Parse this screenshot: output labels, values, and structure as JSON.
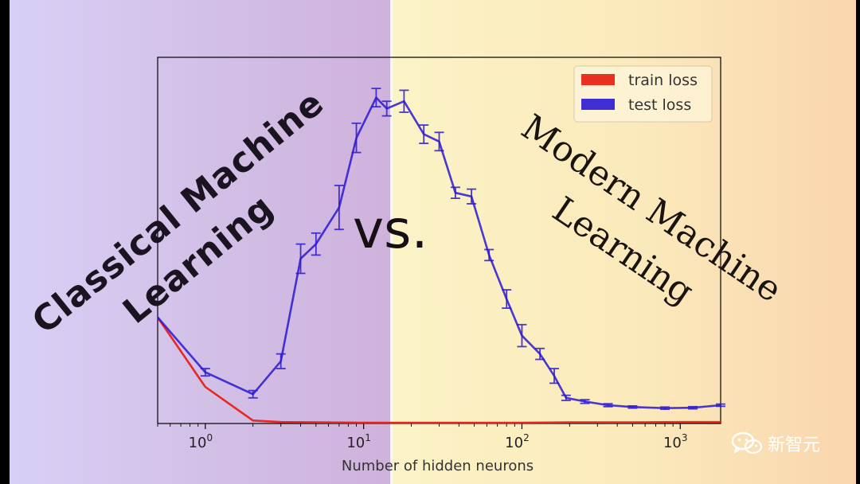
{
  "overlay": {
    "left_title_line1": "Classical Machine",
    "left_title_line2": "Learning",
    "vs": "vs.",
    "right_title_line1": "Modern Machine",
    "right_title_line2": "Learning"
  },
  "watermark": {
    "text": "新智元",
    "icon": "wechat-icon"
  },
  "colors": {
    "train": "#e8180c",
    "test": "#2a18d2",
    "axis": "#000000"
  },
  "chart_data": {
    "type": "line",
    "xlabel": "Number of hidden neurons",
    "ylabel": "",
    "xscale": "log",
    "xlim": [
      0.5,
      1800
    ],
    "ylim": [
      0,
      1
    ],
    "grid": false,
    "legend_position": "top-right",
    "x_tick_labels": [
      {
        "value": 1,
        "base": "10",
        "exp": "0"
      },
      {
        "value": 10,
        "base": "10",
        "exp": "1"
      },
      {
        "value": 100,
        "base": "10",
        "exp": "2"
      },
      {
        "value": 1000,
        "base": "10",
        "exp": "3"
      }
    ],
    "series": [
      {
        "name": "train loss",
        "x": [
          0.5,
          1,
          2,
          3,
          5,
          10,
          20,
          50,
          100,
          200,
          500,
          1000,
          1800
        ],
        "y": [
          0.29,
          0.1,
          0.008,
          0.004,
          0.003,
          0.002,
          0.002,
          0.002,
          0.002,
          0.003,
          0.003,
          0.004,
          0.004
        ]
      },
      {
        "name": "test loss",
        "x": [
          0.5,
          1,
          2,
          3,
          4,
          5,
          7,
          9,
          12,
          14,
          18,
          24,
          30,
          38,
          48,
          62,
          80,
          100,
          130,
          160,
          190,
          250,
          350,
          500,
          800,
          1200,
          1800
        ],
        "y": [
          0.29,
          0.14,
          0.08,
          0.17,
          0.45,
          0.49,
          0.59,
          0.78,
          0.89,
          0.86,
          0.88,
          0.79,
          0.77,
          0.63,
          0.62,
          0.46,
          0.34,
          0.24,
          0.19,
          0.13,
          0.07,
          0.06,
          0.05,
          0.045,
          0.042,
          0.043,
          0.05
        ],
        "err": [
          0,
          0.01,
          0.01,
          0.02,
          0.04,
          0.03,
          0.06,
          0.04,
          0.025,
          0.02,
          0.03,
          0.025,
          0.025,
          0.015,
          0.02,
          0.015,
          0.025,
          0.03,
          0.015,
          0.02,
          0.007,
          0.005,
          0.004,
          0.003,
          0.003,
          0.003,
          0.003
        ]
      }
    ]
  }
}
